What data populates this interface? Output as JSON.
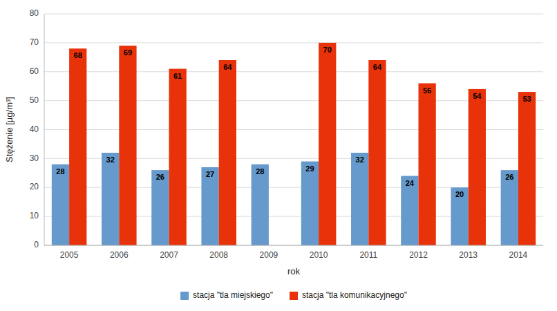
{
  "chart_data": {
    "type": "bar",
    "xlabel": "rok",
    "ylabel": "Stężenie [µg/m³]",
    "categories": [
      "2005",
      "2006",
      "2007",
      "2008",
      "2009",
      "2010",
      "2011",
      "2012",
      "2013",
      "2014"
    ],
    "series": [
      {
        "name": "stacja \"tla miejskiego\"",
        "color": "#6699CC",
        "values": [
          28,
          32,
          26,
          27,
          28,
          29,
          32,
          24,
          20,
          26
        ]
      },
      {
        "name": "stacja \"tla komunikacyjnego\"",
        "color": "#E8320A",
        "values": [
          68,
          69,
          61,
          64,
          null,
          70,
          64,
          56,
          54,
          53
        ]
      }
    ],
    "ylim": [
      0,
      80
    ],
    "yticks": [
      0,
      10,
      20,
      30,
      40,
      50,
      60,
      70,
      80
    ],
    "grid": true,
    "legend": "bottom",
    "data_labels": true
  }
}
